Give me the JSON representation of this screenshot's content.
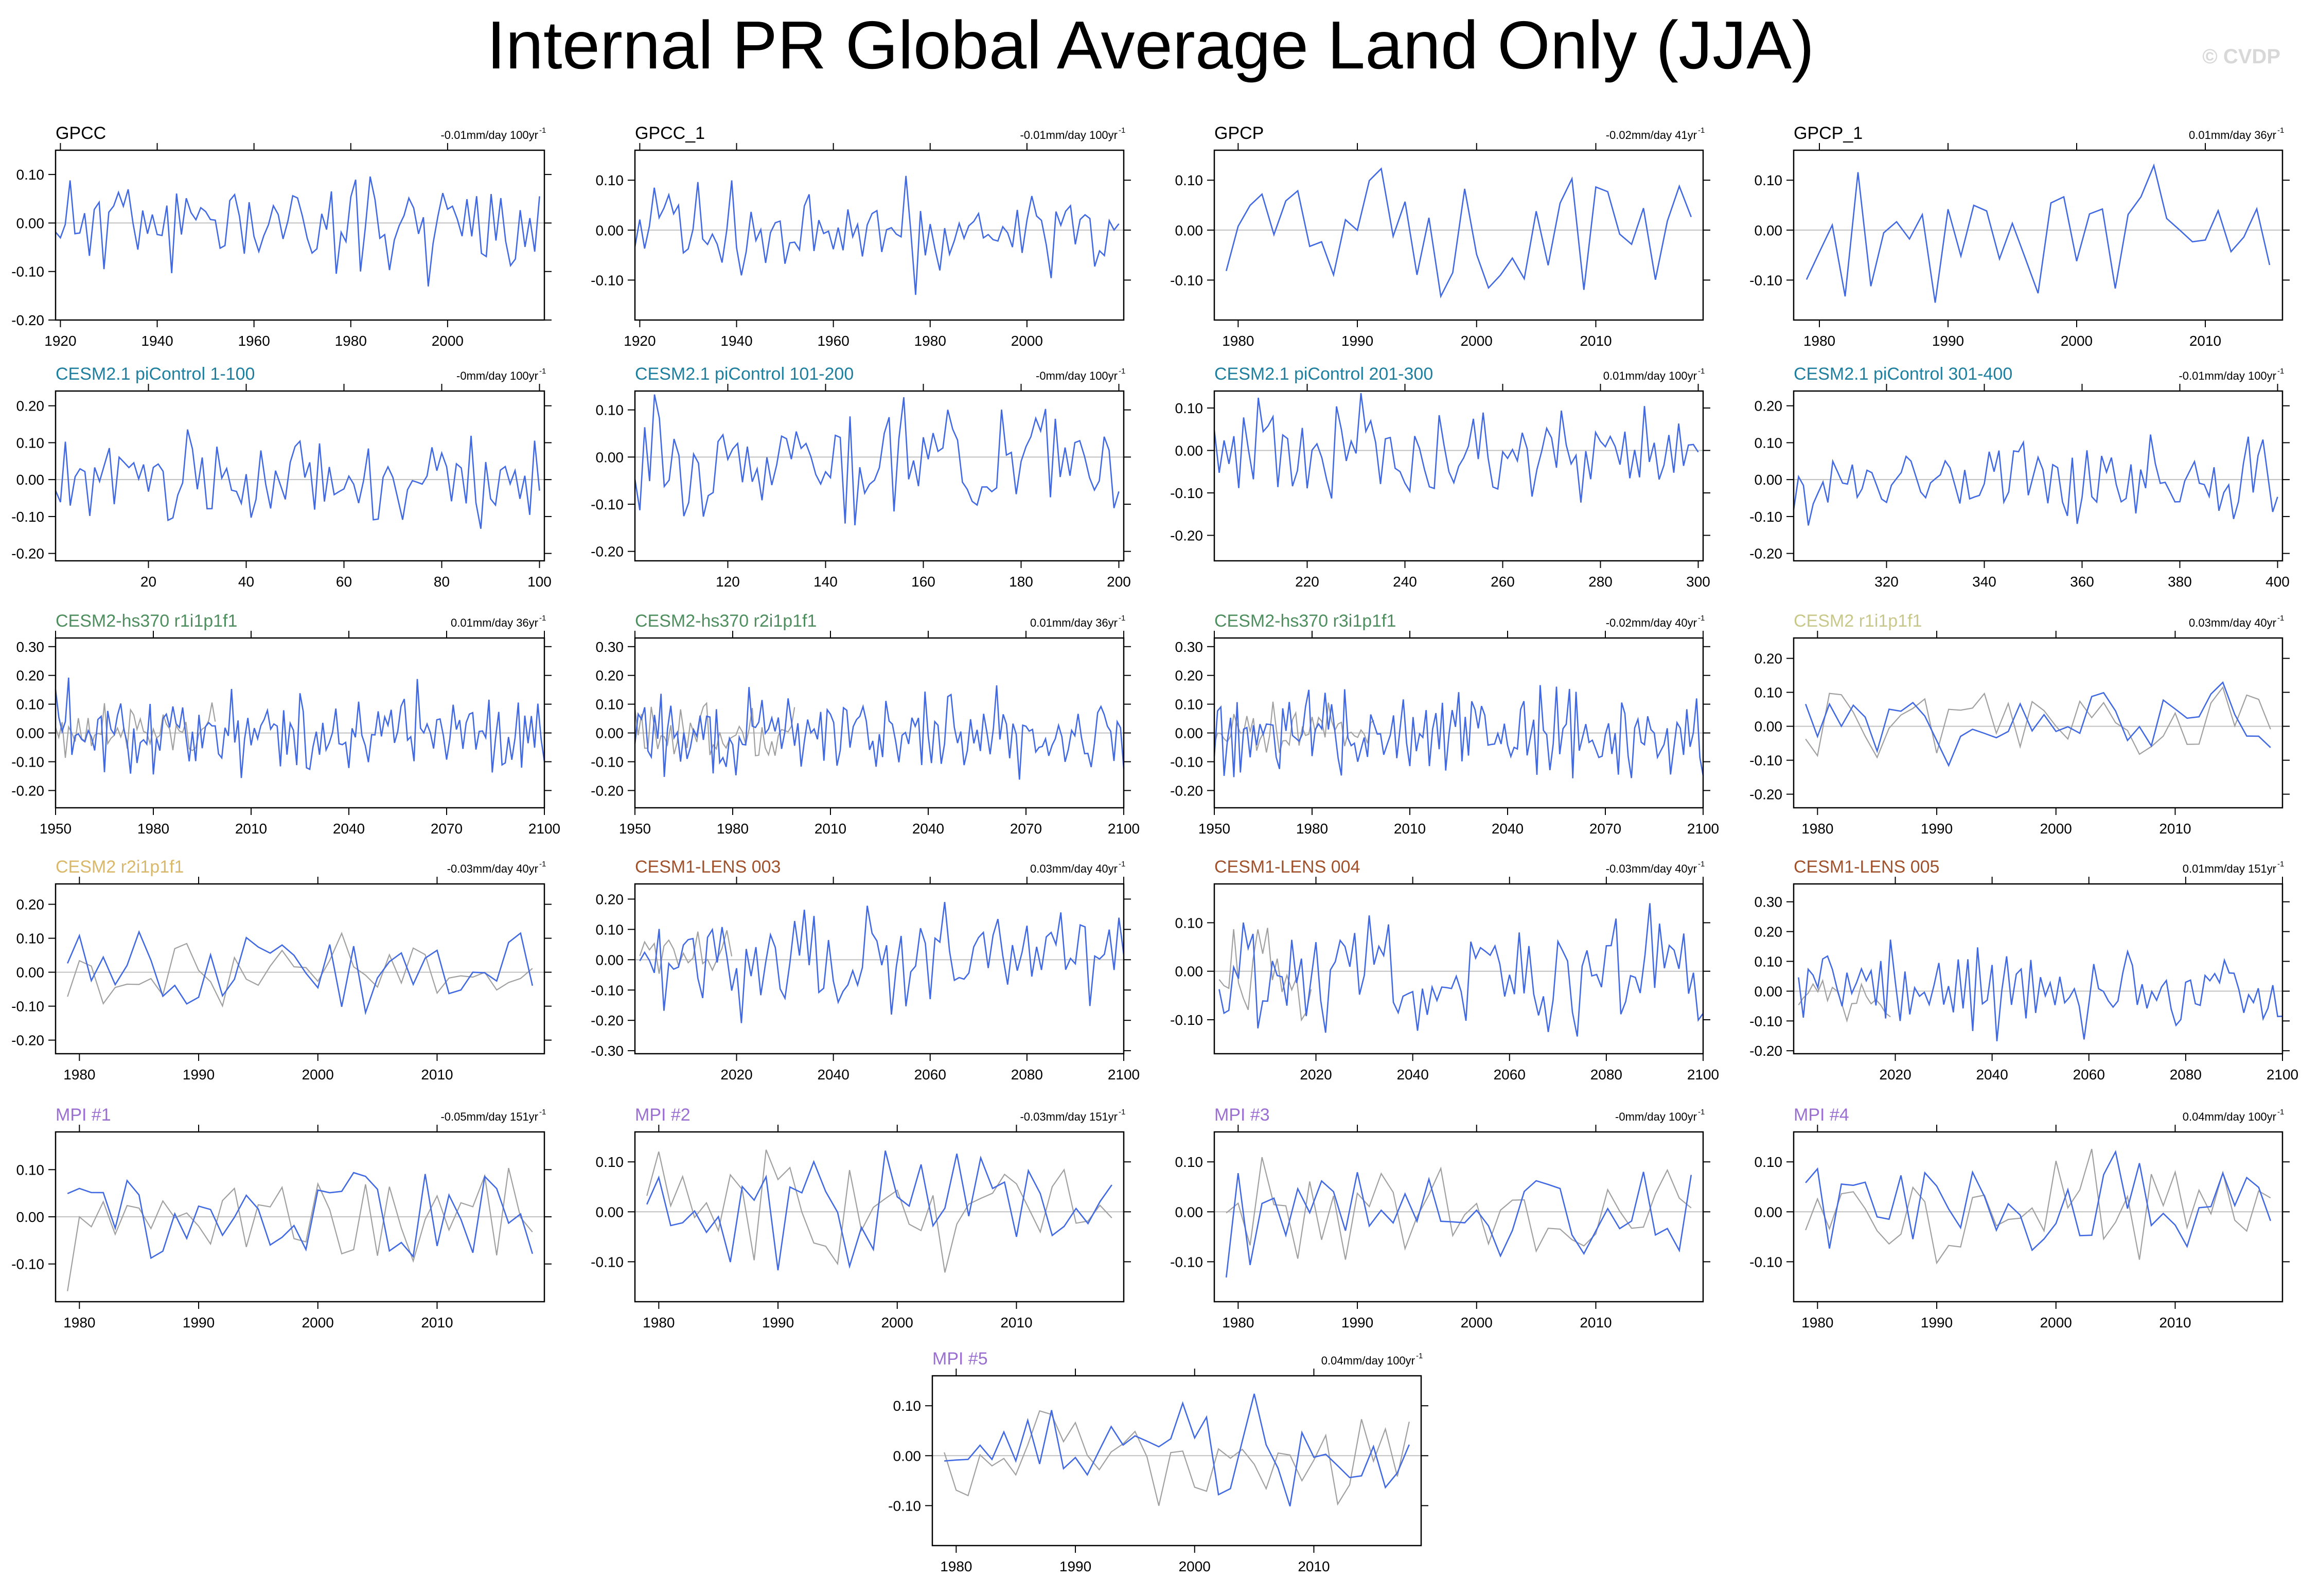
{
  "title": "Internal PR Global Average Land Only (JJA)",
  "watermark": "© CVDP",
  "colors": {
    "model_line": "#4169e1",
    "reference_line": "#a0a0a0",
    "zero_line": "#c0c0c0",
    "frame": "#000000"
  },
  "chart_data": [
    {
      "type": "line",
      "title": "GPCC",
      "title_color": "#000000",
      "trend_label": "-0.01mm/day 100yr",
      "trend_sup": "-1",
      "xlim": [
        1919,
        2020
      ],
      "ylim": [
        -0.2,
        0.15
      ],
      "xticks": [
        1920,
        1940,
        1960,
        1980,
        2000
      ],
      "yticks": [
        0.1,
        0.0,
        -0.1,
        -0.2
      ],
      "ytick_labels": [
        "0.10",
        "0.00",
        "-0.10",
        "-0.20"
      ],
      "series": [
        {
          "role": "model",
          "start": 1919,
          "step": 1,
          "count": 101,
          "amp": 0.06,
          "seed": 11
        }
      ]
    },
    {
      "type": "line",
      "title": "GPCC_1",
      "title_color": "#000000",
      "trend_label": "-0.01mm/day 100yr",
      "trend_sup": "-1",
      "xlim": [
        1919,
        2020
      ],
      "ylim": [
        -0.18,
        0.16
      ],
      "xticks": [
        1920,
        1940,
        1960,
        1980,
        2000
      ],
      "yticks": [
        0.1,
        0.0,
        -0.1
      ],
      "ytick_labels": [
        "0.10",
        "0.00",
        "-0.10"
      ],
      "series": [
        {
          "role": "model",
          "start": 1919,
          "step": 1,
          "count": 101,
          "amp": 0.06,
          "seed": 12
        }
      ]
    },
    {
      "type": "line",
      "title": "GPCP",
      "title_color": "#000000",
      "trend_label": "-0.02mm/day 41yr",
      "trend_sup": "-1",
      "xlim": [
        1978,
        2019
      ],
      "ylim": [
        -0.18,
        0.16
      ],
      "xticks": [
        1980,
        1990,
        2000,
        2010
      ],
      "yticks": [
        0.1,
        0.0,
        -0.1
      ],
      "ytick_labels": [
        "0.10",
        "0.00",
        "-0.10"
      ],
      "series": [
        {
          "role": "reference",
          "start": 1979,
          "step": 1,
          "count": 40,
          "amp": 0.07,
          "seed": 21
        },
        {
          "role": "model",
          "start": 1979,
          "step": 1,
          "count": 40,
          "amp": 0.07,
          "seed": 21
        }
      ]
    },
    {
      "type": "line",
      "title": "GPCP_1",
      "title_color": "#000000",
      "trend_label": "0.01mm/day 36yr",
      "trend_sup": "-1",
      "xlim": [
        1978,
        2016
      ],
      "ylim": [
        -0.18,
        0.16
      ],
      "xticks": [
        1980,
        1990,
        2000,
        2010
      ],
      "yticks": [
        0.1,
        0.0,
        -0.1
      ],
      "ytick_labels": [
        "0.10",
        "0.00",
        "-0.10"
      ],
      "series": [
        {
          "role": "reference",
          "start": 1979,
          "step": 1,
          "count": 37,
          "amp": 0.07,
          "seed": 22
        },
        {
          "role": "model",
          "start": 1979,
          "step": 1,
          "count": 37,
          "amp": 0.07,
          "seed": 22
        }
      ]
    },
    {
      "type": "line",
      "title": "CESM2.1 piControl 1-100",
      "title_color": "#1f7f9f",
      "trend_label": "-0mm/day 100yr",
      "trend_sup": "-1",
      "xlim": [
        1,
        101
      ],
      "ylim": [
        -0.22,
        0.24
      ],
      "xticks": [
        20,
        40,
        60,
        80,
        100
      ],
      "yticks": [
        0.2,
        0.1,
        0.0,
        -0.1,
        -0.2
      ],
      "ytick_labels": [
        "0.20",
        "0.10",
        "0.00",
        "-0.10",
        "-0.20"
      ],
      "series": [
        {
          "role": "model",
          "start": 1,
          "step": 1,
          "count": 100,
          "amp": 0.07,
          "seed": 31
        }
      ]
    },
    {
      "type": "line",
      "title": "CESM2.1 piControl 101-200",
      "title_color": "#1f7f9f",
      "trend_label": "-0mm/day 100yr",
      "trend_sup": "-1",
      "xlim": [
        101,
        201
      ],
      "ylim": [
        -0.22,
        0.14
      ],
      "xticks": [
        120,
        140,
        160,
        180,
        200
      ],
      "yticks": [
        0.1,
        0.0,
        -0.1,
        -0.2
      ],
      "ytick_labels": [
        "0.10",
        "0.00",
        "-0.10",
        "-0.20"
      ],
      "series": [
        {
          "role": "model",
          "start": 101,
          "step": 1,
          "count": 100,
          "amp": 0.07,
          "seed": 32
        }
      ]
    },
    {
      "type": "line",
      "title": "CESM2.1 piControl 201-300",
      "title_color": "#1f7f9f",
      "trend_label": "0.01mm/day 100yr",
      "trend_sup": "-1",
      "xlim": [
        201,
        301
      ],
      "ylim": [
        -0.26,
        0.14
      ],
      "xticks": [
        220,
        240,
        260,
        280,
        300
      ],
      "yticks": [
        0.1,
        0.0,
        -0.1,
        -0.2
      ],
      "ytick_labels": [
        "0.10",
        "0.00",
        "-0.10",
        "-0.20"
      ],
      "series": [
        {
          "role": "model",
          "start": 201,
          "step": 1,
          "count": 100,
          "amp": 0.07,
          "seed": 33
        }
      ]
    },
    {
      "type": "line",
      "title": "CESM2.1 piControl 301-400",
      "title_color": "#1f7f9f",
      "trend_label": "-0.01mm/day 100yr",
      "trend_sup": "-1",
      "xlim": [
        301,
        401
      ],
      "ylim": [
        -0.22,
        0.24
      ],
      "xticks": [
        320,
        340,
        360,
        380,
        400
      ],
      "yticks": [
        0.2,
        0.1,
        0.0,
        -0.1,
        -0.2
      ],
      "ytick_labels": [
        "0.20",
        "0.10",
        "0.00",
        "-0.10",
        "-0.20"
      ],
      "series": [
        {
          "role": "model",
          "start": 301,
          "step": 1,
          "count": 100,
          "amp": 0.07,
          "seed": 34
        }
      ]
    },
    {
      "type": "line",
      "title": "CESM2-hs370 r1i1p1f1",
      "title_color": "#4f8f5f",
      "trend_label": "0.01mm/day 36yr",
      "trend_sup": "-1",
      "xlim": [
        1950,
        2100
      ],
      "ylim": [
        -0.26,
        0.33
      ],
      "xticks": [
        1950,
        1980,
        2010,
        2040,
        2070,
        2100
      ],
      "yticks": [
        0.3,
        0.2,
        0.1,
        0.0,
        -0.1,
        -0.2
      ],
      "ytick_labels": [
        "0.30",
        "0.20",
        "0.10",
        "0.00",
        "-0.10",
        "-0.20"
      ],
      "series": [
        {
          "role": "reference",
          "start": 1950,
          "step": 1,
          "count": 50,
          "amp": 0.06,
          "seed": 41
        },
        {
          "role": "model",
          "start": 1950,
          "step": 1,
          "count": 151,
          "amp": 0.09,
          "seed": 42
        }
      ]
    },
    {
      "type": "line",
      "title": "CESM2-hs370 r2i1p1f1",
      "title_color": "#4f8f5f",
      "trend_label": "0.01mm/day 36yr",
      "trend_sup": "-1",
      "xlim": [
        1950,
        2100
      ],
      "ylim": [
        -0.26,
        0.33
      ],
      "xticks": [
        1950,
        1980,
        2010,
        2040,
        2070,
        2100
      ],
      "yticks": [
        0.3,
        0.2,
        0.1,
        0.0,
        -0.1,
        -0.2
      ],
      "ytick_labels": [
        "0.30",
        "0.20",
        "0.10",
        "0.00",
        "-0.10",
        "-0.20"
      ],
      "series": [
        {
          "role": "reference",
          "start": 1950,
          "step": 1,
          "count": 50,
          "amp": 0.06,
          "seed": 43
        },
        {
          "role": "model",
          "start": 1950,
          "step": 1,
          "count": 151,
          "amp": 0.09,
          "seed": 44
        }
      ]
    },
    {
      "type": "line",
      "title": "CESM2-hs370 r3i1p1f1",
      "title_color": "#4f8f5f",
      "trend_label": "-0.02mm/day 40yr",
      "trend_sup": "-1",
      "xlim": [
        1950,
        2100
      ],
      "ylim": [
        -0.26,
        0.33
      ],
      "xticks": [
        1950,
        1980,
        2010,
        2040,
        2070,
        2100
      ],
      "yticks": [
        0.3,
        0.2,
        0.1,
        0.0,
        -0.1,
        -0.2
      ],
      "ytick_labels": [
        "0.30",
        "0.20",
        "0.10",
        "0.00",
        "-0.10",
        "-0.20"
      ],
      "series": [
        {
          "role": "reference",
          "start": 1950,
          "step": 1,
          "count": 50,
          "amp": 0.06,
          "seed": 45
        },
        {
          "role": "model",
          "start": 1950,
          "step": 1,
          "count": 151,
          "amp": 0.09,
          "seed": 46
        }
      ]
    },
    {
      "type": "line",
      "title": "CESM2 r1i1p1f1",
      "title_color": "#c8c88a",
      "trend_label": "0.03mm/day 40yr",
      "trend_sup": "-1",
      "xlim": [
        1978,
        2019
      ],
      "ylim": [
        -0.24,
        0.26
      ],
      "xticks": [
        1980,
        1990,
        2000,
        2010
      ],
      "yticks": [
        0.2,
        0.1,
        0.0,
        -0.1,
        -0.2
      ],
      "ytick_labels": [
        "0.20",
        "0.10",
        "0.00",
        "-0.10",
        "-0.20"
      ],
      "series": [
        {
          "role": "reference",
          "start": 1979,
          "step": 1,
          "count": 40,
          "amp": 0.07,
          "seed": 51
        },
        {
          "role": "model",
          "start": 1979,
          "step": 1,
          "count": 40,
          "amp": 0.08,
          "seed": 52
        }
      ]
    },
    {
      "type": "line",
      "title": "CESM2 r2i1p1f1",
      "title_color": "#d9b86a",
      "trend_label": "-0.03mm/day 40yr",
      "trend_sup": "-1",
      "xlim": [
        1978,
        2019
      ],
      "ylim": [
        -0.24,
        0.26
      ],
      "xticks": [
        1980,
        1990,
        2000,
        2010
      ],
      "yticks": [
        0.2,
        0.1,
        0.0,
        -0.1,
        -0.2
      ],
      "ytick_labels": [
        "0.20",
        "0.10",
        "0.00",
        "-0.10",
        "-0.20"
      ],
      "series": [
        {
          "role": "reference",
          "start": 1979,
          "step": 1,
          "count": 40,
          "amp": 0.07,
          "seed": 53
        },
        {
          "role": "model",
          "start": 1979,
          "step": 1,
          "count": 40,
          "amp": 0.08,
          "seed": 54
        }
      ]
    },
    {
      "type": "line",
      "title": "CESM1-LENS 003",
      "title_color": "#a0522d",
      "trend_label": "0.03mm/day 40yr",
      "trend_sup": "-1",
      "xlim": [
        1999,
        2100
      ],
      "ylim": [
        -0.31,
        0.25
      ],
      "xticks": [
        2020,
        2040,
        2060,
        2080,
        2100
      ],
      "yticks": [
        0.2,
        0.1,
        0.0,
        -0.1,
        -0.2,
        -0.3
      ],
      "ytick_labels": [
        "0.20",
        "0.10",
        "0.00",
        "-0.10",
        "-0.20",
        "-0.30"
      ],
      "series": [
        {
          "role": "reference",
          "start": 2000,
          "step": 1,
          "count": 20,
          "amp": 0.06,
          "seed": 61
        },
        {
          "role": "model",
          "start": 2000,
          "step": 1,
          "count": 101,
          "amp": 0.1,
          "seed": 62
        }
      ]
    },
    {
      "type": "line",
      "title": "CESM1-LENS 004",
      "title_color": "#a0522d",
      "trend_label": "-0.03mm/day 40yr",
      "trend_sup": "-1",
      "xlim": [
        1999,
        2100
      ],
      "ylim": [
        -0.17,
        0.18
      ],
      "xticks": [
        2020,
        2040,
        2060,
        2080,
        2100
      ],
      "yticks": [
        0.1,
        0.0,
        -0.1
      ],
      "ytick_labels": [
        "0.10",
        "0.00",
        "-0.10"
      ],
      "series": [
        {
          "role": "reference",
          "start": 2000,
          "step": 1,
          "count": 20,
          "amp": 0.06,
          "seed": 63
        },
        {
          "role": "model",
          "start": 2000,
          "step": 1,
          "count": 101,
          "amp": 0.07,
          "seed": 64
        }
      ]
    },
    {
      "type": "line",
      "title": "CESM1-LENS 005",
      "title_color": "#a0522d",
      "trend_label": "0.01mm/day 151yr",
      "trend_sup": "-1",
      "xlim": [
        1999,
        2100
      ],
      "ylim": [
        -0.21,
        0.36
      ],
      "xticks": [
        2020,
        2040,
        2060,
        2080,
        2100
      ],
      "yticks": [
        0.3,
        0.2,
        0.1,
        0.0,
        -0.1,
        -0.2
      ],
      "ytick_labels": [
        "0.30",
        "0.20",
        "0.10",
        "0.00",
        "-0.10",
        "-0.20"
      ],
      "series": [
        {
          "role": "reference",
          "start": 2000,
          "step": 1,
          "count": 20,
          "amp": 0.06,
          "seed": 65
        },
        {
          "role": "model",
          "start": 2000,
          "step": 1,
          "count": 101,
          "amp": 0.08,
          "seed": 66
        }
      ]
    },
    {
      "type": "line",
      "title": "MPI #1",
      "title_color": "#9a6fd1",
      "trend_label": "-0.05mm/day 151yr",
      "trend_sup": "-1",
      "xlim": [
        1978,
        2019
      ],
      "ylim": [
        -0.18,
        0.18
      ],
      "xticks": [
        1980,
        1990,
        2000,
        2010
      ],
      "yticks": [
        0.1,
        0.0,
        -0.1
      ],
      "ytick_labels": [
        "0.10",
        "0.00",
        "-0.10"
      ],
      "series": [
        {
          "role": "reference",
          "start": 1979,
          "step": 1,
          "count": 40,
          "amp": 0.07,
          "seed": 71
        },
        {
          "role": "model",
          "start": 1979,
          "step": 1,
          "count": 40,
          "amp": 0.07,
          "seed": 72
        }
      ]
    },
    {
      "type": "line",
      "title": "MPI #2",
      "title_color": "#9a6fd1",
      "trend_label": "-0.03mm/day 151yr",
      "trend_sup": "-1",
      "xlim": [
        1978,
        2019
      ],
      "ylim": [
        -0.18,
        0.16
      ],
      "xticks": [
        1980,
        1990,
        2000,
        2010
      ],
      "yticks": [
        0.1,
        0.0,
        -0.1
      ],
      "ytick_labels": [
        "0.10",
        "0.00",
        "-0.10"
      ],
      "series": [
        {
          "role": "reference",
          "start": 1979,
          "step": 1,
          "count": 40,
          "amp": 0.07,
          "seed": 73
        },
        {
          "role": "model",
          "start": 1979,
          "step": 1,
          "count": 40,
          "amp": 0.07,
          "seed": 74
        }
      ]
    },
    {
      "type": "line",
      "title": "MPI #3",
      "title_color": "#9a6fd1",
      "trend_label": "-0mm/day 100yr",
      "trend_sup": "-1",
      "xlim": [
        1978,
        2019
      ],
      "ylim": [
        -0.18,
        0.16
      ],
      "xticks": [
        1980,
        1990,
        2000,
        2010
      ],
      "yticks": [
        0.1,
        0.0,
        -0.1
      ],
      "ytick_labels": [
        "0.10",
        "0.00",
        "-0.10"
      ],
      "series": [
        {
          "role": "reference",
          "start": 1979,
          "step": 1,
          "count": 40,
          "amp": 0.07,
          "seed": 75
        },
        {
          "role": "model",
          "start": 1979,
          "step": 1,
          "count": 40,
          "amp": 0.07,
          "seed": 76
        }
      ]
    },
    {
      "type": "line",
      "title": "MPI #4",
      "title_color": "#9a6fd1",
      "trend_label": "0.04mm/day 100yr",
      "trend_sup": "-1",
      "xlim": [
        1978,
        2019
      ],
      "ylim": [
        -0.18,
        0.16
      ],
      "xticks": [
        1980,
        1990,
        2000,
        2010
      ],
      "yticks": [
        0.1,
        0.0,
        -0.1
      ],
      "ytick_labels": [
        "0.10",
        "0.00",
        "-0.10"
      ],
      "series": [
        {
          "role": "reference",
          "start": 1979,
          "step": 1,
          "count": 40,
          "amp": 0.07,
          "seed": 77
        },
        {
          "role": "model",
          "start": 1979,
          "step": 1,
          "count": 40,
          "amp": 0.07,
          "seed": 78
        }
      ]
    },
    {
      "type": "line",
      "title": "MPI #5",
      "title_color": "#9a6fd1",
      "trend_label": "0.04mm/day 100yr",
      "trend_sup": "-1",
      "xlim": [
        1978,
        2019
      ],
      "ylim": [
        -0.18,
        0.16
      ],
      "xticks": [
        1980,
        1990,
        2000,
        2010
      ],
      "yticks": [
        0.1,
        0.0,
        -0.1
      ],
      "ytick_labels": [
        "0.10",
        "0.00",
        "-0.10"
      ],
      "series": [
        {
          "role": "reference",
          "start": 1979,
          "step": 1,
          "count": 40,
          "amp": 0.07,
          "seed": 81
        },
        {
          "role": "model",
          "start": 1979,
          "step": 1,
          "count": 40,
          "amp": 0.07,
          "seed": 82
        }
      ]
    }
  ]
}
